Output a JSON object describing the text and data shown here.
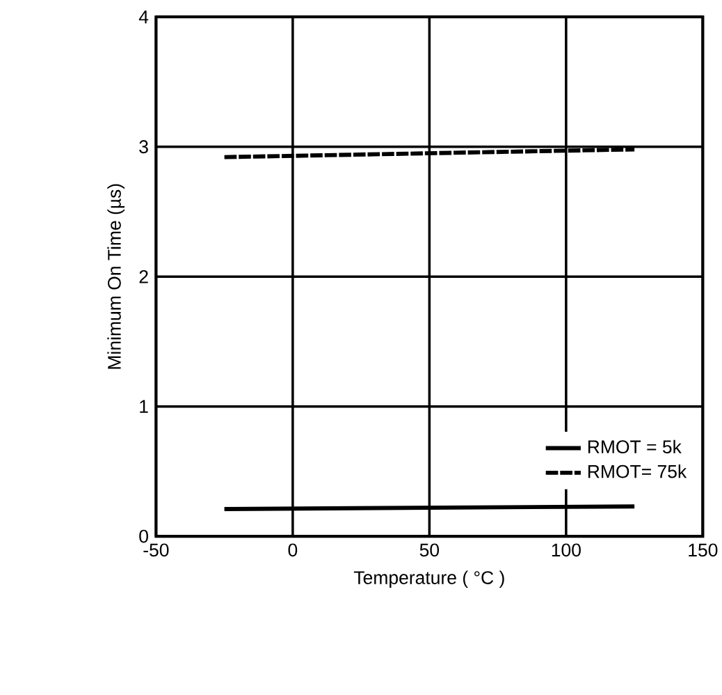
{
  "chart_data": {
    "type": "line",
    "xlabel": "Temperature ( °C )",
    "ylabel": "Minimum On Time (µs)",
    "xlim": [
      -50,
      150
    ],
    "ylim": [
      0,
      4
    ],
    "xticks": [
      -50,
      0,
      50,
      100,
      150
    ],
    "yticks": [
      0,
      1,
      2,
      3,
      4
    ],
    "grid": true,
    "legend": "bottom right",
    "x": [
      -25,
      125
    ],
    "series": [
      {
        "name": "RMOT = 5k",
        "color": "#000000",
        "line_style": "solid",
        "values": [
          0.21,
          0.23
        ]
      },
      {
        "name": "RMOT= 75k",
        "color": "#000000",
        "line_style": "dashed",
        "values": [
          2.92,
          2.98
        ]
      }
    ]
  }
}
